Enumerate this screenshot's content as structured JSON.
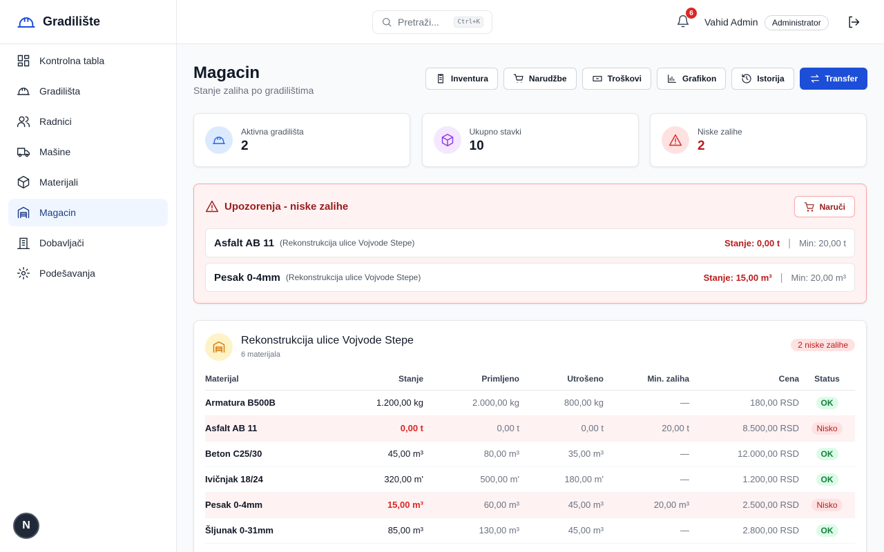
{
  "sidebar": {
    "brand": "Gradilište",
    "nav": [
      "Kontrolna tabla",
      "Gradilišta",
      "Radnici",
      "Mašine",
      "Materijali",
      "Magacin",
      "Dobavljači",
      "Podešavanja"
    ]
  },
  "topbar": {
    "search_placeholder": "Pretraži...",
    "shortcut": "Ctrl+K",
    "notifications": 6,
    "user": "Vahid Admin",
    "role": "Administrator"
  },
  "header": {
    "title": "Magacin",
    "subtitle": "Stanje zaliha po gradilištima",
    "actions": [
      "Inventura",
      "Narudžbe",
      "Troškovi",
      "Grafikon",
      "Istorija",
      "Transfer"
    ]
  },
  "stats": [
    {
      "label": "Aktivna gradilišta",
      "value": 2
    },
    {
      "label": "Ukupno stavki",
      "value": 10
    },
    {
      "label": "Niske zalihe",
      "value": 2
    }
  ],
  "alert": {
    "title": "Upozorenja - niske zalihe",
    "action": "Naruči",
    "items": [
      {
        "name": "Asfalt AB 11",
        "site": "(Rekonstrukcija ulice Vojvode Stepe)",
        "stock": "Stanje: 0,00 t",
        "min": "Min: 20,00 t"
      },
      {
        "name": "Pesak 0-4mm",
        "site": "(Rekonstrukcija ulice Vojvode Stepe)",
        "stock": "Stanje: 15,00 m³",
        "min": "Min: 20,00 m³"
      }
    ]
  },
  "site": {
    "name": "Rekonstrukcija ulice Vojvode Stepe",
    "count": "6 materijala",
    "badge": "2 niske zalihe",
    "table": {
      "columns": [
        "Materijal",
        "Stanje",
        "Primljeno",
        "Utrošeno",
        "Min. zaliha",
        "Cena",
        "Status"
      ],
      "rows": [
        {
          "cells": [
            "Armatura B500B",
            "1.200,00 kg",
            "2.000,00 kg",
            "800,00 kg",
            "—",
            "180,00 RSD",
            "OK"
          ],
          "low": false
        },
        {
          "cells": [
            "Asfalt AB 11",
            "0,00 t",
            "0,00 t",
            "0,00 t",
            "20,00 t",
            "8.500,00 RSD",
            "Nisko"
          ],
          "low": true
        },
        {
          "cells": [
            "Beton C25/30",
            "45,00 m³",
            "80,00 m³",
            "35,00 m³",
            "—",
            "12.000,00 RSD",
            "OK"
          ],
          "low": false
        },
        {
          "cells": [
            "Ivičnjak 18/24",
            "320,00 m'",
            "500,00 m'",
            "180,00 m'",
            "—",
            "1.200,00 RSD",
            "OK"
          ],
          "low": false
        },
        {
          "cells": [
            "Pesak 0-4mm",
            "15,00 m³",
            "60,00 m³",
            "45,00 m³",
            "20,00 m³",
            "2.500,00 RSD",
            "Nisko"
          ],
          "low": true
        },
        {
          "cells": [
            "Šljunak 0-31mm",
            "85,00 m³",
            "130,00 m³",
            "45,00 m³",
            "—",
            "2.800,00 RSD",
            "OK"
          ],
          "low": false
        }
      ]
    }
  }
}
